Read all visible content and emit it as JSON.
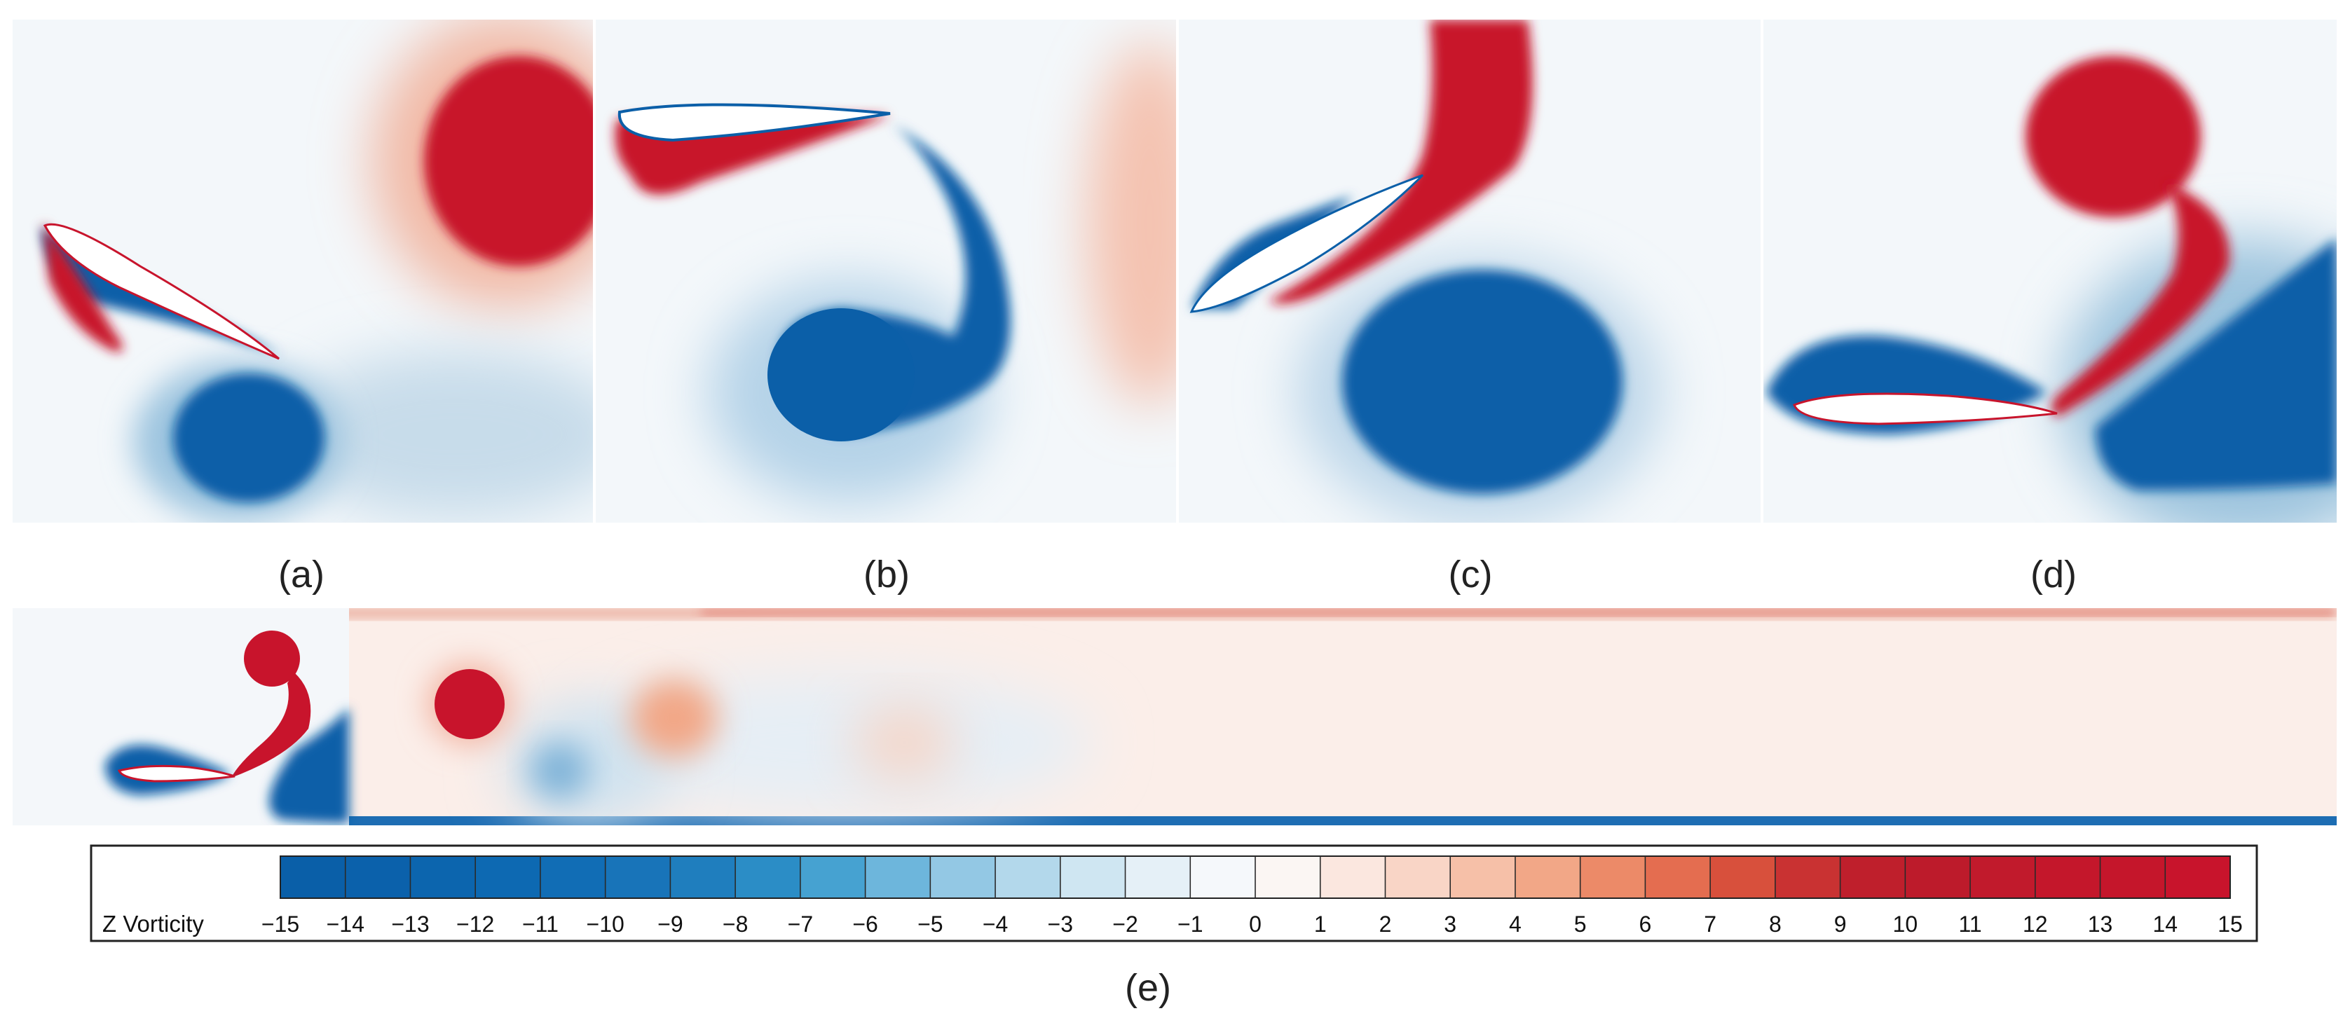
{
  "panels": [
    {
      "id": "a",
      "label": "(a)"
    },
    {
      "id": "b",
      "label": "(b)"
    },
    {
      "id": "c",
      "label": "(c)"
    },
    {
      "id": "d",
      "label": "(d)"
    },
    {
      "id": "e",
      "label": "(e)"
    }
  ],
  "colorbar": {
    "title": "Z Vorticity",
    "min": -15,
    "max": 15,
    "tick_labels": [
      "-15",
      "-14",
      "-13",
      "-12",
      "-11",
      "-10",
      "-9",
      "-8",
      "-7",
      "-6",
      "-5",
      "-4",
      "-3",
      "-2",
      "-1",
      "0",
      "1",
      "2",
      "3",
      "4",
      "5",
      "6",
      "7",
      "8",
      "9",
      "10",
      "11",
      "12",
      "13",
      "14",
      "15"
    ],
    "colors": [
      "#0a5fa8",
      "#0b61ab",
      "#0c65ae",
      "#0d69b2",
      "#116db5",
      "#1874b9",
      "#1f7ebe",
      "#2b8dc6",
      "#46a2d1",
      "#6db6dc",
      "#93c8e4",
      "#b3d8eb",
      "#cfe6f2",
      "#e5f0f7",
      "#f5f8fb",
      "#fbf6f3",
      "#fbe7df",
      "#f9d5c6",
      "#f6c0a8",
      "#f2a787",
      "#ec8a68",
      "#e46d50",
      "#d8503c",
      "#c93232",
      "#bf1f2c",
      "#bd1b2b",
      "#c11a2c",
      "#c4172b",
      "#c5162b",
      "#c8142c"
    ]
  },
  "palette": {
    "neg": "#0b5fa8",
    "pos": "#c8142c",
    "bg": "#f4f7fa",
    "foil": "#ffffff"
  }
}
